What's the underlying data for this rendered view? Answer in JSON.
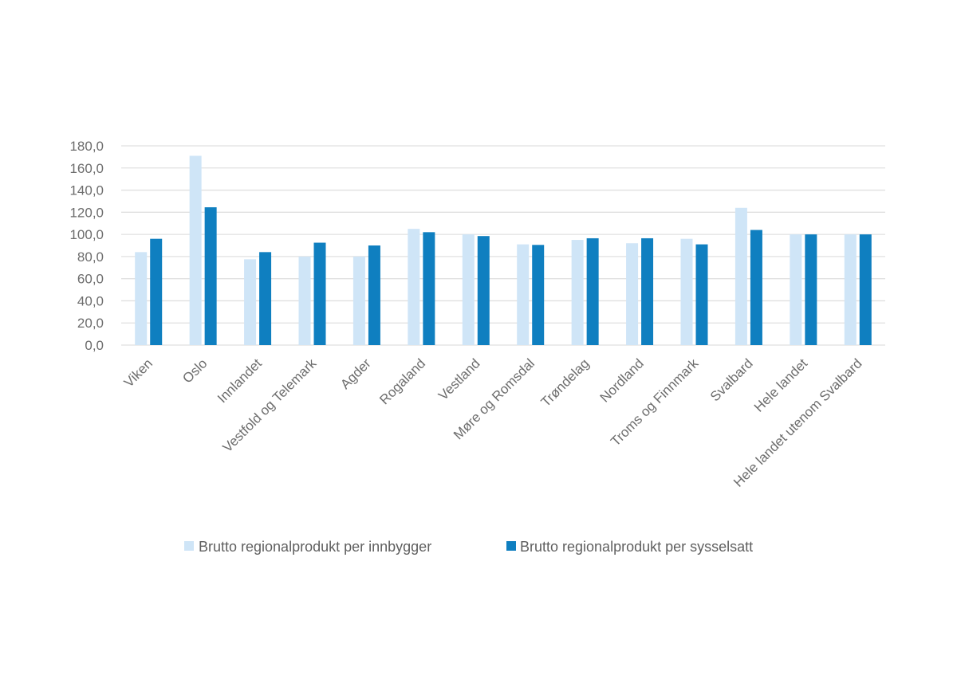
{
  "chart_data": {
    "type": "bar",
    "title": "",
    "xlabel": "",
    "ylabel": "",
    "ylim": [
      0,
      180
    ],
    "yticks": [
      "0,0",
      "20,0",
      "40,0",
      "60,0",
      "80,0",
      "100,0",
      "120,0",
      "140,0",
      "160,0",
      "180,0"
    ],
    "grid": true,
    "legend_position": "bottom",
    "categories": [
      "Viken",
      "Oslo",
      "Innlandet",
      "Vestfold og Telemark",
      "Agder",
      "Rogaland",
      "Vestland",
      "Møre og Romsdal",
      "Trøndelag",
      "Nordland",
      "Troms og Finnmark",
      "Svalbard",
      "Hele landet",
      "Hele landet utenom Svalbard"
    ],
    "series": [
      {
        "name": "Brutto regionalprodukt per innbygger",
        "color": "#cfe5f7",
        "values": [
          84,
          171,
          77.5,
          80,
          80,
          105,
          100,
          91,
          95,
          92,
          96,
          124,
          100,
          100
        ]
      },
      {
        "name": "Brutto regionalprodukt per sysselsatt",
        "color": "#0f7fc0",
        "values": [
          96,
          124.5,
          84,
          92.5,
          90,
          102,
          98.5,
          90.5,
          96.5,
          96.5,
          91,
          104,
          100,
          100
        ]
      }
    ]
  }
}
